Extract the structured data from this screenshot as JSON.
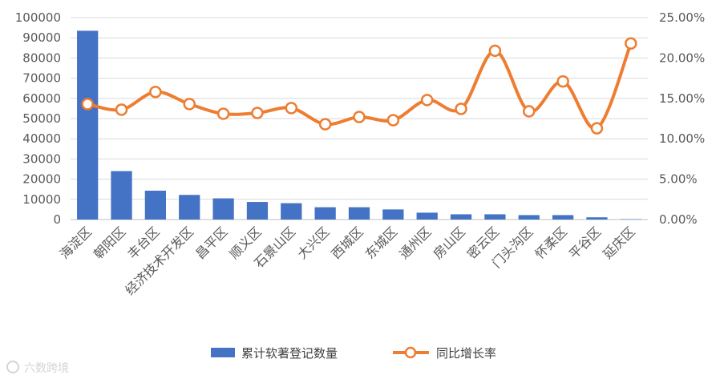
{
  "chart_data": {
    "type": "bar+line",
    "categories": [
      "海淀区",
      "朝阳区",
      "丰台区",
      "经济技术开发区",
      "昌平区",
      "顺义区",
      "石景山区",
      "大兴区",
      "西城区",
      "东城区",
      "通州区",
      "房山区",
      "密云区",
      "门头沟区",
      "怀柔区",
      "平谷区",
      "延庆区"
    ],
    "series": [
      {
        "name": "累计软著登记数量",
        "type": "bar",
        "axis": "left",
        "color": "#4472C4",
        "values": [
          93500,
          24000,
          14300,
          12200,
          10500,
          8700,
          8100,
          6100,
          6100,
          5000,
          3400,
          2600,
          2600,
          2200,
          2200,
          1100,
          200
        ]
      },
      {
        "name": "同比增长率",
        "type": "line",
        "axis": "right",
        "color": "#ED7D31",
        "smooth": true,
        "values": [
          14.3,
          13.6,
          15.8,
          14.3,
          13.1,
          13.2,
          13.8,
          11.8,
          12.7,
          12.3,
          14.8,
          13.7,
          20.9,
          13.4,
          17.1,
          11.3,
          21.8
        ]
      }
    ],
    "y_left": {
      "min": 0,
      "max": 100000,
      "step": 10000,
      "ticks": [
        "0",
        "10000",
        "20000",
        "30000",
        "40000",
        "50000",
        "60000",
        "70000",
        "80000",
        "90000",
        "100000"
      ]
    },
    "y_right": {
      "min": 0,
      "max": 25,
      "step": 5,
      "ticks": [
        "0.00%",
        "5.00%",
        "10.00%",
        "15.00%",
        "20.00%",
        "25.00%"
      ]
    },
    "grid": true,
    "legend": "bottom",
    "title": "",
    "xlabel": "",
    "ylabel": ""
  },
  "watermark": {
    "text": "六数跨境"
  }
}
